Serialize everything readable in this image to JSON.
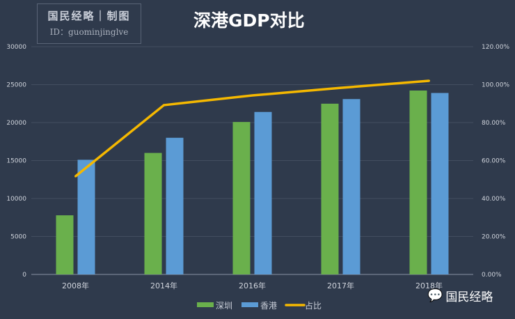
{
  "stamp": {
    "line1": "国民经略｜制图",
    "line2": "ID：guominjinglve"
  },
  "watermark": "国民经略",
  "chart_data": {
    "type": "bar",
    "title": "深港GDP对比",
    "categories": [
      "2008年",
      "2014年",
      "2016年",
      "2017年",
      "2018年"
    ],
    "series": [
      {
        "name": "深圳",
        "type": "bar",
        "axis": "left",
        "color": "#6ab04c",
        "values": [
          7787,
          16002,
          20079,
          22490,
          24222
        ]
      },
      {
        "name": "香港",
        "type": "bar",
        "axis": "left",
        "color": "#5b9bd5",
        "values": [
          15100,
          18000,
          21400,
          23100,
          23900
        ]
      },
      {
        "name": "占比",
        "type": "line",
        "axis": "right",
        "color": "#f5b800",
        "values": [
          51.7,
          89.2,
          94.3,
          98.3,
          102.0
        ]
      }
    ],
    "ylim": [
      0,
      30000
    ],
    "yticks": [
      "0",
      "5000",
      "10000",
      "15000",
      "20000",
      "25000",
      "30000"
    ],
    "y2lim": [
      0,
      120
    ],
    "y2ticks": [
      "0.00%",
      "20.00%",
      "40.00%",
      "60.00%",
      "80.00%",
      "100.00%",
      "120.00%"
    ],
    "grid": true,
    "legend": "bottom"
  }
}
